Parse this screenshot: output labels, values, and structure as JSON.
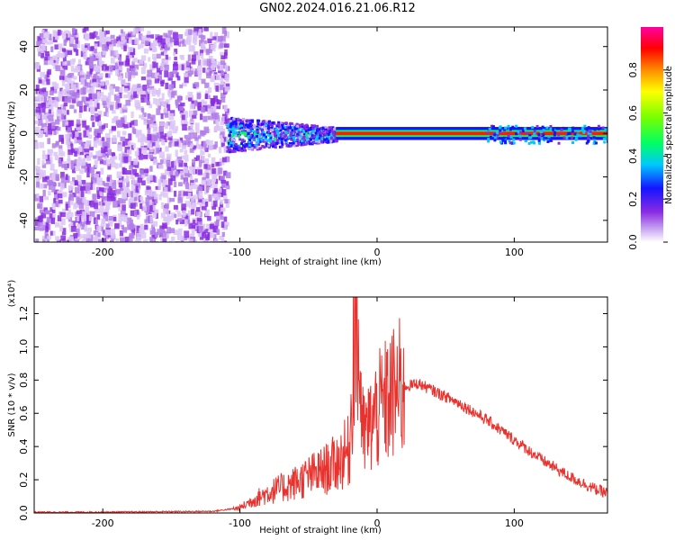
{
  "figure": {
    "title": "GN02.2024.016.21.06.R12"
  },
  "chart_data": [
    {
      "type": "heatmap",
      "xlabel": "Height of straight line (km)",
      "ylabel": "Frequency (Hz)",
      "xlim": [
        -250,
        168
      ],
      "ylim": [
        -50,
        49
      ],
      "xticks": [
        -200,
        -100,
        0,
        100
      ],
      "yticks": [
        -40,
        -20,
        0,
        20,
        40
      ],
      "colorbar": {
        "label": "Normalized spectral amplitude",
        "range": [
          0,
          1
        ],
        "ticks": [
          "0.0",
          "0.2",
          "0.4",
          "0.6",
          "0.8"
        ],
        "colors": [
          "#ffffff",
          "#c9a8f2",
          "#8a2be2",
          "#1414ff",
          "#00c8ff",
          "#00ff64",
          "#78ff00",
          "#ffff00",
          "#ff8c00",
          "#ff0000",
          "#ff00a0"
        ]
      },
      "regions": [
        {
          "x": [
            -250,
            -110
          ],
          "freq_band": [
            -50,
            49
          ],
          "amplitude": 0.15,
          "description_level": "noise"
        },
        {
          "x": [
            -110,
            -30
          ],
          "freq_band": [
            -8,
            8
          ],
          "amplitude": 0.3
        },
        {
          "x": [
            -30,
            168
          ],
          "freq_band": [
            -2,
            2
          ],
          "amplitude": 0.9
        }
      ]
    },
    {
      "type": "line",
      "xlabel": "Height of straight line (km)",
      "ylabel": "SNR (10 * v/v)",
      "y_multiplier": "(x10⁴)",
      "xlim": [
        -250,
        168
      ],
      "ylim": [
        0,
        1.3
      ],
      "xticks": [
        -200,
        -100,
        0,
        100
      ],
      "yticks": [
        "0.0",
        "0.2",
        "0.4",
        "0.6",
        "0.8",
        "1.0",
        "1.2"
      ],
      "series": [
        {
          "color": "#e8322e",
          "x": [
            -250,
            -200,
            -150,
            -120,
            -100,
            -90,
            -80,
            -70,
            -60,
            -50,
            -40,
            -30,
            -20,
            -16,
            -10,
            0,
            10,
            20,
            30,
            40,
            60,
            80,
            100,
            120,
            140,
            160,
            168
          ],
          "y": [
            0.005,
            0.005,
            0.008,
            0.01,
            0.03,
            0.08,
            0.12,
            0.15,
            0.18,
            0.22,
            0.25,
            0.3,
            0.38,
            1.3,
            0.45,
            0.6,
            0.7,
            0.76,
            0.78,
            0.74,
            0.66,
            0.56,
            0.44,
            0.32,
            0.22,
            0.14,
            0.12
          ]
        }
      ]
    }
  ]
}
